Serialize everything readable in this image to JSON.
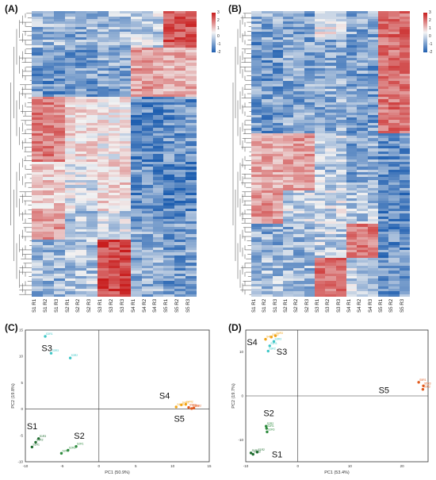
{
  "panels": {
    "a": "(A)",
    "b": "(B)",
    "c": "(C)",
    "d": "(D)"
  },
  "heatmap_columns": [
    "S1 R1",
    "S1 R2",
    "S1 R3",
    "S2 R1",
    "S2 R2",
    "S2 R3",
    "S3 R1",
    "S3 R2",
    "S3 R3",
    "S4 R1",
    "S4 R2",
    "S4 R3",
    "S5 R1",
    "S5 R2",
    "S5 R3"
  ],
  "colorbar_ticks": [
    "3",
    "2",
    "1",
    "0",
    "-1",
    "-2"
  ],
  "colors": {
    "high": "#c81d1d",
    "mid": "#f2f2f2",
    "low": "#1f5fb0",
    "s1": "#1e6b2e",
    "s2": "#2e8b3e",
    "s3": "#3ec7c7",
    "s4": "#f2a516",
    "s5": "#e25a1c"
  },
  "chart_data": [
    {
      "type": "scatter",
      "panel": "(C)",
      "xlabel": "PC1 (50.9%)",
      "ylabel": "PC2 (19.8%)",
      "xlim": [
        -10,
        15
      ],
      "ylim": [
        -10,
        15
      ],
      "xticks": [
        "-10",
        "-5",
        "0",
        "5",
        "10",
        "15"
      ],
      "yticks": [
        "-10",
        "-5",
        "0",
        "5",
        "10",
        "15"
      ],
      "groups": [
        {
          "name": "S1",
          "points": [
            [
              -8.2,
              -5.6
            ],
            [
              -8.6,
              -6.3
            ],
            [
              -9.1,
              -7.2
            ]
          ],
          "labels": [
            "S1R3",
            "S1R2",
            "S1R1"
          ]
        },
        {
          "name": "S2",
          "points": [
            [
              -3.1,
              -7.1
            ],
            [
              -4.2,
              -7.8
            ],
            [
              -5.1,
              -8.4
            ]
          ],
          "labels": [
            "S2R1",
            "S2R3",
            "S2R2"
          ]
        },
        {
          "name": "S3",
          "points": [
            [
              -7.3,
              13.8
            ],
            [
              -6.5,
              10.6
            ],
            [
              -3.9,
              9.7
            ]
          ],
          "labels": [
            "S3R1",
            "S3R3",
            "S3R2"
          ]
        },
        {
          "name": "S4",
          "points": [
            [
              10.5,
              0.4
            ],
            [
              11.2,
              0.8
            ],
            [
              11.8,
              0.9
            ]
          ],
          "labels": [
            "S4R3",
            "S4R1",
            "S4R2"
          ]
        },
        {
          "name": "S5",
          "points": [
            [
              12.2,
              0.3
            ],
            [
              12.6,
              0.1
            ],
            [
              12.9,
              0.2
            ]
          ],
          "labels": [
            "S5R3",
            "S5R1",
            "S5R2"
          ]
        }
      ],
      "group_labels": [
        "S1",
        "S2",
        "S3",
        "S4",
        "S5"
      ]
    },
    {
      "type": "scatter",
      "panel": "(D)",
      "xlabel": "PC1 (53.4%)",
      "ylabel": "PC2 (19.7%)",
      "xlim": [
        -10,
        25
      ],
      "ylim": [
        -15,
        15
      ],
      "xticks": [
        "-10",
        "0",
        "10",
        "20"
      ],
      "yticks": [
        "-10",
        "0",
        "10"
      ],
      "groups": [
        {
          "name": "S1",
          "points": [
            [
              -7.8,
              -12.8
            ],
            [
              -8.6,
              -13.3
            ],
            [
              -9.0,
              -13.0
            ]
          ],
          "labels": [
            "S1R2",
            "S1R3",
            "S1R1"
          ]
        },
        {
          "name": "S2",
          "points": [
            [
              -6.1,
              -6.9
            ],
            [
              -6.0,
              -7.4
            ],
            [
              -5.9,
              -8.2
            ]
          ],
          "labels": [
            "S2R2",
            "S2R1",
            "S2R3"
          ]
        },
        {
          "name": "S3",
          "points": [
            [
              -5.4,
              11.4
            ],
            [
              -5.7,
              10.2
            ],
            [
              -4.6,
              12.4
            ]
          ],
          "labels": [
            "S3R1",
            "S3R2",
            "S3R3"
          ]
        },
        {
          "name": "S4",
          "points": [
            [
              -6.2,
              12.9
            ],
            [
              -5.1,
              13.4
            ],
            [
              -4.3,
              13.7
            ]
          ],
          "labels": [
            "S4R1",
            "S4R2",
            "S4R3"
          ]
        },
        {
          "name": "S5",
          "points": [
            [
              23.2,
              3.1
            ],
            [
              24.1,
              2.3
            ],
            [
              24.0,
              1.5
            ]
          ],
          "labels": [
            "S5R1",
            "S5R3",
            "S5R2"
          ]
        }
      ],
      "group_labels": [
        "S1",
        "S2",
        "S3",
        "S4",
        "S5"
      ]
    }
  ]
}
